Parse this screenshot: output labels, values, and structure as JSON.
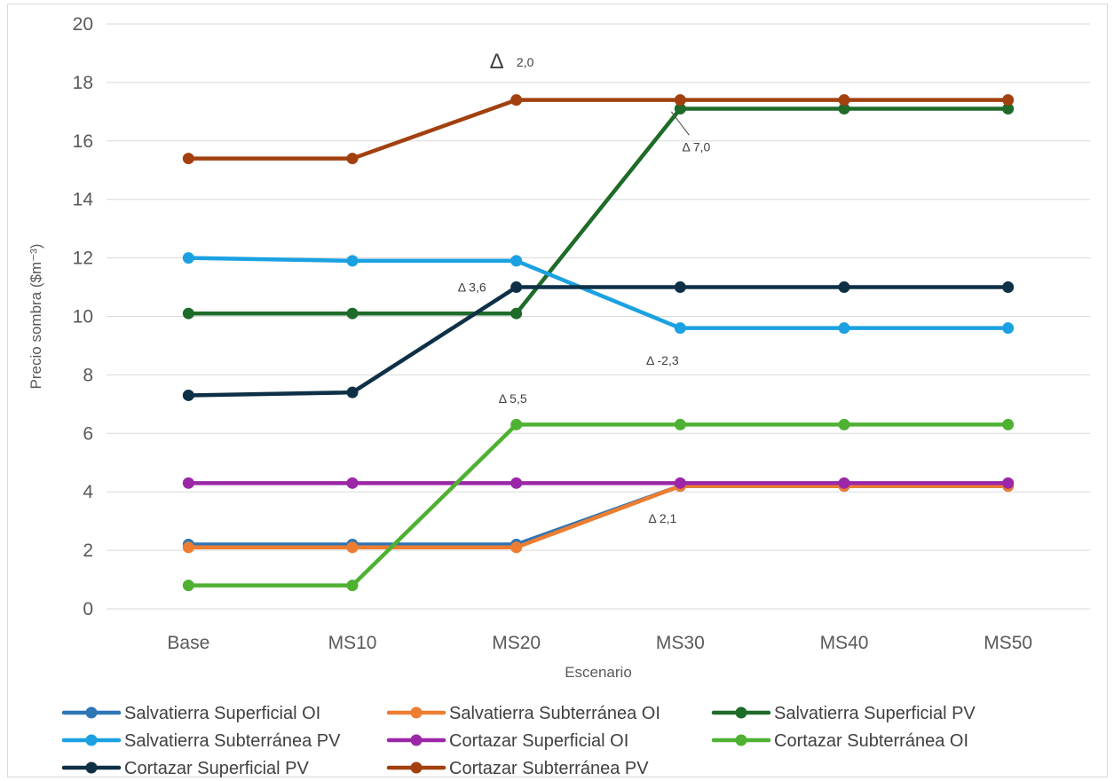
{
  "chart_data": {
    "type": "line",
    "xlabel": "Escenario",
    "ylabel": "Precio sombra ($m⁻³)",
    "ylim": [
      0,
      20
    ],
    "y_ticks": [
      "0",
      "2",
      "4",
      "6",
      "8",
      "10",
      "12",
      "14",
      "16",
      "18",
      "20"
    ],
    "categories": [
      "Base",
      "MS10",
      "MS20",
      "MS30",
      "MS40",
      "MS50"
    ],
    "grid": "horizontal",
    "legend_position": "bottom",
    "series": [
      {
        "name": "Salvatierra Superficial OI",
        "color": "#2e75b6",
        "values": [
          2.2,
          2.2,
          2.2,
          4.2,
          4.2,
          4.2
        ]
      },
      {
        "name": "Salvatierra Subterránea OI",
        "color": "#ed7d31",
        "values": [
          2.1,
          2.1,
          2.1,
          4.2,
          4.2,
          4.2
        ]
      },
      {
        "name": "Salvatierra Superficial PV",
        "color": "#1e6b2a",
        "values": [
          10.1,
          10.1,
          10.1,
          17.1,
          17.1,
          17.1
        ]
      },
      {
        "name": "Salvatierra Subterránea PV",
        "color": "#1ba1e2",
        "values": [
          12.0,
          11.9,
          11.9,
          9.6,
          9.6,
          9.6
        ]
      },
      {
        "name": "Cortazar Superficial OI",
        "color": "#9b27a8",
        "values": [
          4.3,
          4.3,
          4.3,
          4.3,
          4.3,
          4.3
        ]
      },
      {
        "name": "Cortazar Subterránea OI",
        "color": "#4eb131",
        "values": [
          0.8,
          0.8,
          6.3,
          6.3,
          6.3,
          6.3
        ]
      },
      {
        "name": "Cortazar Superficial PV",
        "color": "#0e3047",
        "values": [
          7.3,
          7.4,
          11.0,
          11.0,
          11.0,
          11.0
        ]
      },
      {
        "name": "Cortazar Subterránea PV",
        "color": "#a2400f",
        "values": [
          15.4,
          15.4,
          17.4,
          17.4,
          17.4,
          17.4
        ]
      }
    ],
    "annotations": [
      {
        "text": "2,0",
        "category": "MS20",
        "y": 18.7
      },
      {
        "text": "Δ 7,0",
        "category": "MS30",
        "y": 15.8
      },
      {
        "text": "Δ 3,6",
        "category": "MS20",
        "y": 11.0
      },
      {
        "text": "Δ -2,3",
        "category": "MS30",
        "y": 8.5
      },
      {
        "text": "Δ 5,5",
        "category": "MS20",
        "y": 7.2
      },
      {
        "text": "Δ 2,1",
        "category": "MS30",
        "y": 3.1
      }
    ]
  }
}
